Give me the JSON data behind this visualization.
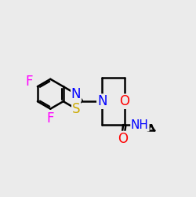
{
  "bg_color": "#ebebeb",
  "bond_color": "#000000",
  "N_color": "#0000ff",
  "O_color": "#ff0000",
  "S_color": "#ccaa00",
  "F_color": "#ff00ff",
  "lw": 1.8,
  "fs": 12
}
